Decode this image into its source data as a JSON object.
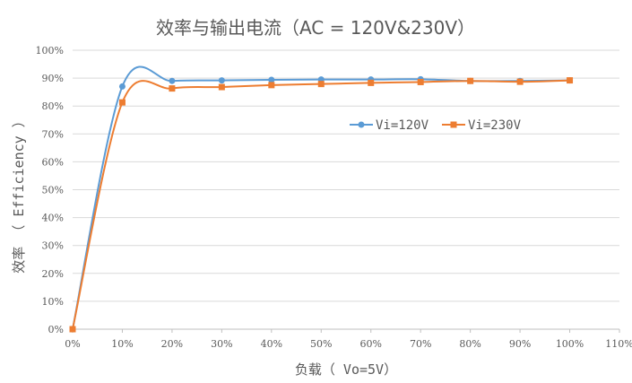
{
  "chart_data": {
    "type": "line",
    "title": "效率与输出电流（AC = 120V&230V）",
    "xlabel": "负载（ Vo=5V）",
    "ylabel": "效率 （ Efficiency ）",
    "x_ticks": [
      "0%",
      "10%",
      "20%",
      "30%",
      "40%",
      "50%",
      "60%",
      "70%",
      "80%",
      "90%",
      "100%",
      "110%"
    ],
    "y_ticks": [
      "0%",
      "10%",
      "20%",
      "30%",
      "40%",
      "50%",
      "60%",
      "70%",
      "80%",
      "90%",
      "100%"
    ],
    "xlim": [
      0,
      110
    ],
    "ylim": [
      0,
      100
    ],
    "grid": "horizontal",
    "legend_position": "right-inside",
    "x": [
      0,
      10,
      20,
      30,
      40,
      50,
      60,
      70,
      80,
      90,
      100
    ],
    "series": [
      {
        "name": "Vi=120V",
        "color": "#5b9bd5",
        "marker": "circle",
        "values": [
          0,
          87,
          89,
          89.2,
          89.4,
          89.5,
          89.5,
          89.6,
          89,
          89,
          89.2
        ]
      },
      {
        "name": "Vi=230V",
        "color": "#ed7d31",
        "marker": "square",
        "values": [
          0,
          81.3,
          86.3,
          86.8,
          87.5,
          87.9,
          88.3,
          88.6,
          89,
          88.7,
          89.2
        ]
      }
    ]
  }
}
